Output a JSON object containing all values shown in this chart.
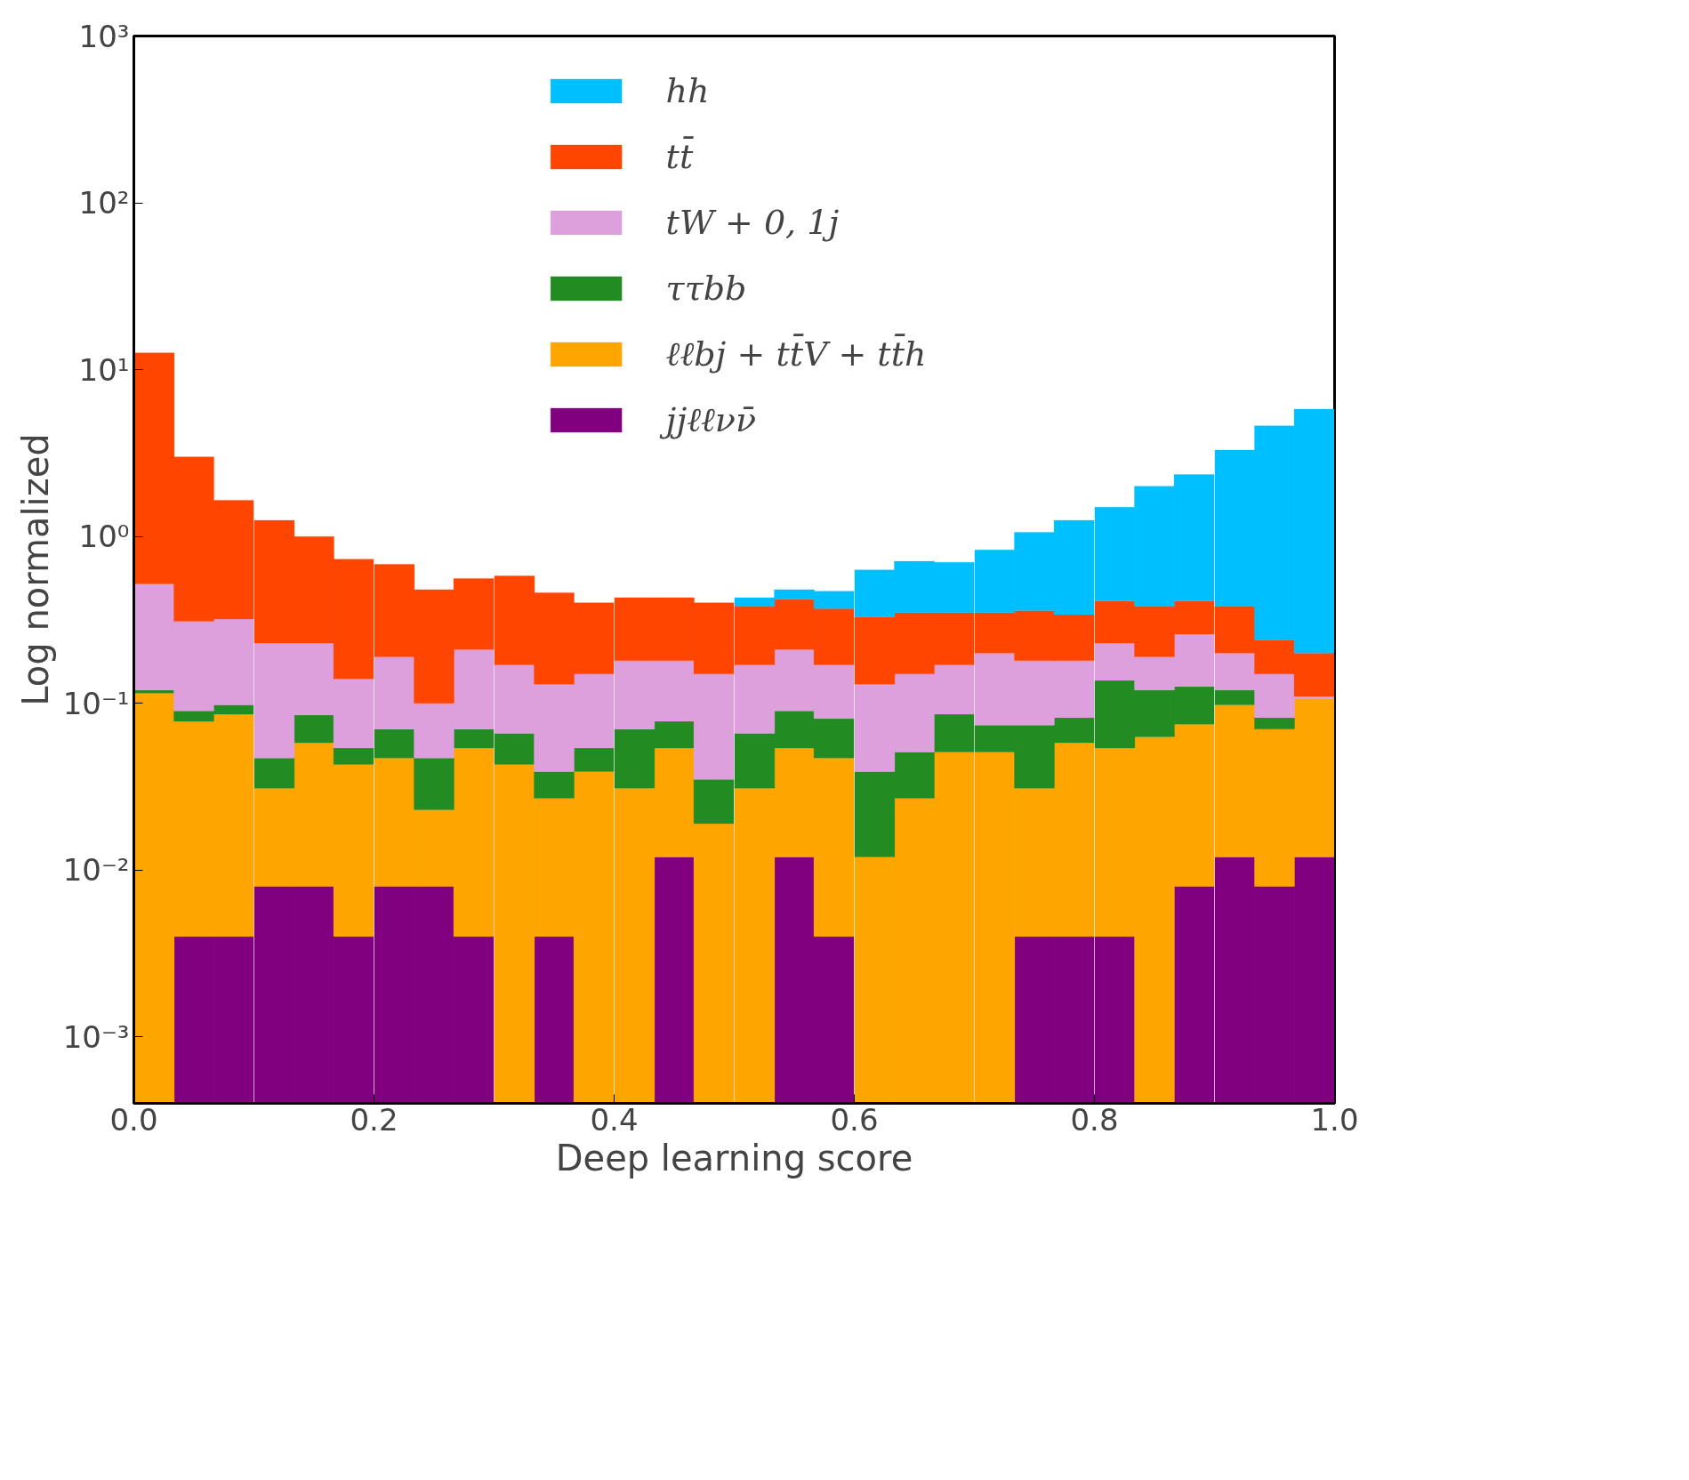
{
  "chart_data": {
    "type": "bar",
    "stacked": true,
    "xlabel": "Deep learning score",
    "ylabel": "Log normalized",
    "x": [
      0.017,
      0.05,
      0.083,
      0.117,
      0.15,
      0.183,
      0.217,
      0.25,
      0.283,
      0.317,
      0.35,
      0.383,
      0.417,
      0.45,
      0.483,
      0.517,
      0.55,
      0.583,
      0.617,
      0.65,
      0.683,
      0.717,
      0.75,
      0.783,
      0.817,
      0.85,
      0.883,
      0.917,
      0.95,
      0.983
    ],
    "series": [
      {
        "name": "jjℓℓνν̄",
        "color": "#800080",
        "values": [
          null,
          0.004,
          0.004,
          0.008,
          0.008,
          0.004,
          0.008,
          0.008,
          0.004,
          null,
          0.004,
          null,
          null,
          0.012,
          null,
          null,
          0.012,
          0.004,
          null,
          null,
          null,
          null,
          0.004,
          0.004,
          0.004,
          null,
          0.008,
          0.012,
          0.008,
          0.012
        ]
      },
      {
        "name": "ℓℓbj + tt̄V + tt̄h",
        "color": "#ffa500",
        "values": [
          0.115,
          0.074,
          0.082,
          0.023,
          0.05,
          0.039,
          0.039,
          0.015,
          0.05,
          0.043,
          0.023,
          0.039,
          0.031,
          0.042,
          0.019,
          0.031,
          0.042,
          0.043,
          0.012,
          0.027,
          0.051,
          0.051,
          0.027,
          0.054,
          0.05,
          0.063,
          0.067,
          0.086,
          0.062,
          0.094
        ]
      },
      {
        "name": "ττbb",
        "color": "#228b22",
        "values": [
          0.005,
          0.012,
          0.012,
          0.016,
          0.027,
          0.011,
          0.023,
          0.024,
          0.016,
          0.023,
          0.012,
          0.015,
          0.039,
          0.024,
          0.016,
          0.035,
          0.036,
          0.034,
          0.027,
          0.024,
          0.035,
          0.023,
          0.043,
          0.024,
          0.083,
          0.057,
          0.051,
          0.022,
          0.012,
          null
        ]
      },
      {
        "name": "tW + 0, 1j",
        "color": "#dda0dd",
        "values": [
          0.4,
          0.22,
          0.222,
          0.183,
          0.145,
          0.086,
          0.12,
          0.053,
          0.14,
          0.104,
          0.091,
          0.096,
          0.11,
          0.102,
          0.115,
          0.104,
          0.12,
          0.089,
          0.091,
          0.099,
          0.084,
          0.126,
          0.106,
          0.098,
          0.093,
          0.07,
          0.134,
          0.08,
          0.068,
          0.004
        ]
      },
      {
        "name": "tt̄",
        "color": "#ff4500",
        "values": [
          12.08,
          2.69,
          1.33,
          1.02,
          0.77,
          0.59,
          0.49,
          0.38,
          0.35,
          0.41,
          0.33,
          0.25,
          0.25,
          0.25,
          0.25,
          0.21,
          0.21,
          0.2,
          0.2,
          0.2,
          0.18,
          0.15,
          0.18,
          0.16,
          0.18,
          0.19,
          0.15,
          0.18,
          0.09,
          0.09
        ]
      },
      {
        "name": "hh",
        "color": "#00bfff",
        "values": [
          null,
          null,
          null,
          null,
          null,
          null,
          null,
          null,
          null,
          null,
          null,
          null,
          null,
          null,
          null,
          0.05,
          0.06,
          0.1,
          0.3,
          0.36,
          0.35,
          0.48,
          0.7,
          0.91,
          1.09,
          1.62,
          1.94,
          2.92,
          4.36,
          5.6
        ]
      }
    ],
    "log": true,
    "ylim": [
      0.0004,
      1000
    ],
    "yticks": [
      {
        "value": 0.001,
        "label": "10⁻³"
      },
      {
        "value": 0.01,
        "label": "10⁻²"
      },
      {
        "value": 0.1,
        "label": "10⁻¹"
      },
      {
        "value": 1,
        "label": "10⁰"
      },
      {
        "value": 10,
        "label": "10¹"
      },
      {
        "value": 100,
        "label": "10²"
      },
      {
        "value": 1000,
        "label": "10³"
      }
    ],
    "xlim": [
      0,
      1
    ],
    "xticks": [
      {
        "value": 0,
        "label": "0.0"
      },
      {
        "value": 0.2,
        "label": "0.2"
      },
      {
        "value": 0.4,
        "label": "0.4"
      },
      {
        "value": 0.6,
        "label": "0.6"
      },
      {
        "value": 0.8,
        "label": "0.8"
      },
      {
        "value": 1,
        "label": "1.0"
      }
    ],
    "grid": false,
    "legend": "top"
  }
}
